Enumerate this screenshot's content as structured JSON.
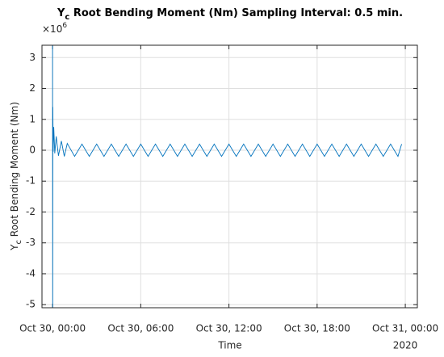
{
  "chart_data": {
    "type": "line",
    "title": {
      "main": "Y",
      "sub": "c",
      "rest": " Root Bending Moment (Nm) Sampling Interval: 0.5 min."
    },
    "ylabel": {
      "main": "Y",
      "sub": "c",
      "rest": " Root Bending Moment (Nm)"
    },
    "xlabel": "Time",
    "x_year_label": "2020",
    "y_exponent": {
      "base": "×10",
      "power": "6"
    },
    "x": [
      0,
      0.01,
      0.02,
      0.04,
      0.08,
      0.15,
      0.25,
      0.4,
      0.6,
      0.8,
      1.0,
      1.5,
      2,
      2.5,
      3,
      3.5,
      4,
      4.5,
      5,
      5.5,
      6,
      6.5,
      7,
      7.5,
      8,
      8.5,
      9,
      9.5,
      10,
      10.5,
      11,
      11.5,
      12,
      12.5,
      13,
      13.5,
      14,
      14.5,
      15,
      15.5,
      16,
      16.5,
      17,
      17.5,
      18,
      18.5,
      19,
      19.5,
      20,
      20.5,
      21,
      21.5,
      22,
      22.5,
      23,
      23.5,
      23.75
    ],
    "series": [
      {
        "name": "Y_c Root Bending Moment",
        "color": "#0072bd",
        "values": [
          3.4,
          -5.1,
          1.4,
          -0.05,
          0.75,
          -0.1,
          0.45,
          -0.18,
          0.3,
          -0.2,
          0.22,
          -0.2,
          0.2,
          -0.2,
          0.2,
          -0.2,
          0.2,
          -0.2,
          0.2,
          -0.2,
          0.2,
          -0.2,
          0.2,
          -0.2,
          0.2,
          -0.2,
          0.2,
          -0.2,
          0.2,
          -0.2,
          0.2,
          -0.2,
          0.2,
          -0.2,
          0.2,
          -0.2,
          0.2,
          -0.2,
          0.2,
          -0.2,
          0.2,
          -0.2,
          0.2,
          -0.2,
          0.2,
          -0.2,
          0.2,
          -0.2,
          0.2,
          -0.2,
          0.2,
          -0.2,
          0.2,
          -0.2,
          0.2,
          -0.2,
          0.2
        ]
      }
    ],
    "xlim": [
      -0.72,
      24.82
    ],
    "xticks": [
      {
        "value": 0,
        "label": "Oct 30, 00:00"
      },
      {
        "value": 6,
        "label": "Oct 30, 06:00"
      },
      {
        "value": 12,
        "label": "Oct 30, 12:00"
      },
      {
        "value": 18,
        "label": "Oct 30, 18:00"
      },
      {
        "value": 24,
        "label": "Oct 31, 00:00"
      }
    ],
    "ylim": [
      -5.1,
      3.4
    ],
    "yticks": [
      -5,
      -4,
      -3,
      -2,
      -1,
      0,
      1,
      2,
      3
    ],
    "grid": true
  }
}
